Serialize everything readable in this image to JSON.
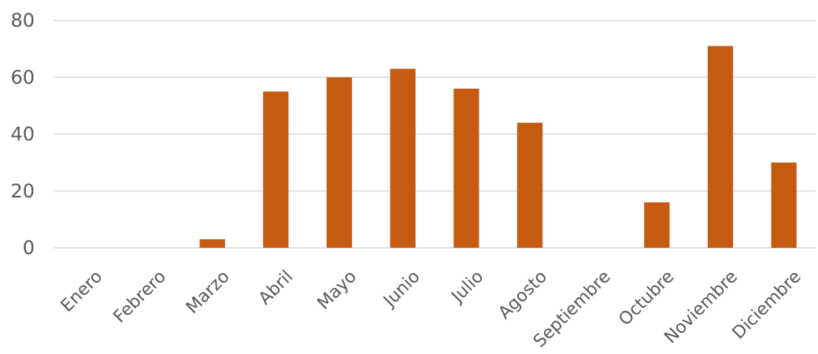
{
  "chart_data": {
    "type": "bar",
    "title": "",
    "xlabel": "",
    "ylabel": "",
    "categories": [
      "Enero",
      "Febrero",
      "Marzo",
      "Abril",
      "Mayo",
      "Junio",
      "Julio",
      "Agosto",
      "Septiembre",
      "Octubre",
      "Noviembre",
      "Diciembre"
    ],
    "values": [
      0,
      0,
      3,
      55,
      60,
      63,
      56,
      44,
      0,
      16,
      71,
      30
    ],
    "ylim": [
      0,
      80
    ],
    "yticks": [
      "0",
      "20",
      "40",
      "60",
      "80"
    ],
    "grid": true,
    "legend": "none",
    "colors": {
      "bar": "#c55a11",
      "grid": "#d9d9d9",
      "text": "#595959"
    }
  }
}
